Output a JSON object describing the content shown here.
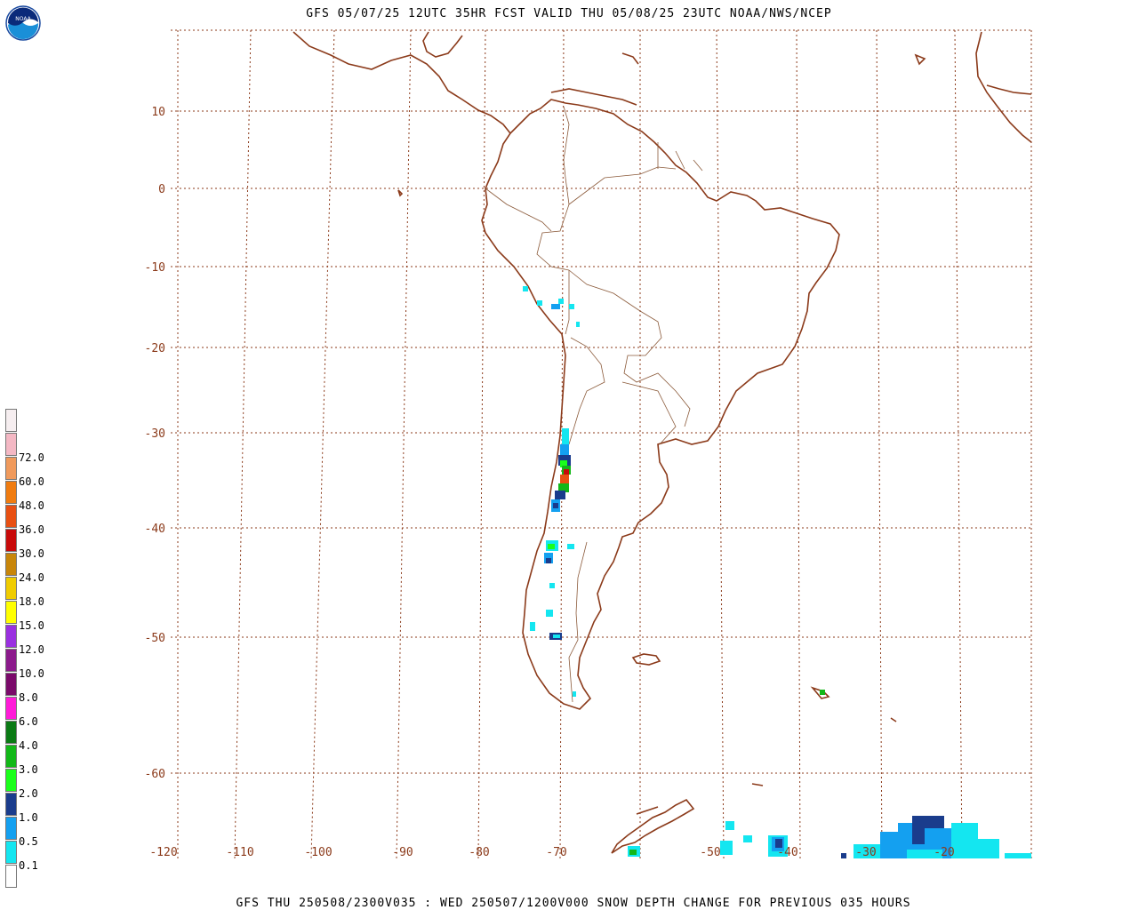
{
  "header": {
    "title": "GFS 05/07/25 12UTC 35HR FCST VALID THU 05/08/25 23UTC NOAA/NWS/NCEP"
  },
  "footer": {
    "caption": "GFS THU 250508/2300V035 : WED 250507/1200V000 SNOW DEPTH CHANGE FOR PREVIOUS 035 HOURS"
  },
  "logo": {
    "text": "NOAA"
  },
  "axes": {
    "lat_labels": [
      "10",
      "0",
      "-10",
      "-20",
      "-30",
      "-40",
      "-50",
      "-60"
    ],
    "lon_labels": [
      "-120",
      "-110",
      "-100",
      "-90",
      "-80",
      "-70",
      "-50",
      "-40",
      "-30",
      "-20"
    ]
  },
  "legend": {
    "entries": [
      {
        "label": "",
        "color": "#f6eef0"
      },
      {
        "label": "72.0",
        "color": "#f4b8c4"
      },
      {
        "label": "60.0",
        "color": "#f09a5c"
      },
      {
        "label": "48.0",
        "color": "#f07c10"
      },
      {
        "label": "36.0",
        "color": "#e84f12"
      },
      {
        "label": "30.0",
        "color": "#c80a0a"
      },
      {
        "label": "24.0",
        "color": "#c8860a"
      },
      {
        "label": "18.0",
        "color": "#f0cc00"
      },
      {
        "label": "15.0",
        "color": "#ffff00"
      },
      {
        "label": "12.0",
        "color": "#9a30e0"
      },
      {
        "label": "10.0",
        "color": "#8c1a8c"
      },
      {
        "label": "8.0",
        "color": "#7a0a6a"
      },
      {
        "label": "6.0",
        "color": "#ff1ad8"
      },
      {
        "label": "4.0",
        "color": "#0a7a14"
      },
      {
        "label": "3.0",
        "color": "#12b818"
      },
      {
        "label": "2.0",
        "color": "#1aff1a"
      },
      {
        "label": "1.0",
        "color": "#1a3c8c"
      },
      {
        "label": "0.5",
        "color": "#14a0f0"
      },
      {
        "label": "0.1",
        "color": "#14e6f0"
      },
      {
        "label": "",
        "color": "#ffffff"
      }
    ]
  },
  "colors": {
    "coast": "#8B3A1A",
    "grid": "#8B3A1A",
    "border": "#8B5A3A"
  }
}
